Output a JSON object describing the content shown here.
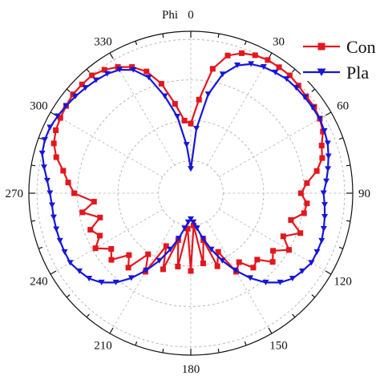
{
  "chart_data": {
    "type": "polar-line",
    "title": "Phi",
    "angle_axis": {
      "zero_direction": "top",
      "direction": "clockwise",
      "ticks": [
        "0",
        "30",
        "60",
        "90",
        "120",
        "150",
        "180",
        "210",
        "240",
        "270",
        "300",
        "330"
      ],
      "tick_values": [
        0,
        30,
        60,
        90,
        120,
        150,
        180,
        210,
        240,
        270,
        300,
        330
      ]
    },
    "radial_axis": {
      "range": [
        0,
        1
      ],
      "grid_circles": [
        0.2,
        0.45,
        0.7,
        0.95
      ],
      "grid": true
    },
    "legend": {
      "placement": "top-right"
    },
    "series": [
      {
        "name": "Con",
        "color": "#e3171d",
        "marker": "square",
        "angles": [
          0,
          5,
          10,
          15,
          20,
          25,
          30,
          35,
          40,
          45,
          50,
          55,
          60,
          65,
          70,
          75,
          80,
          85,
          90,
          95,
          100,
          105,
          110,
          115,
          120,
          125,
          130,
          135,
          140,
          145,
          150,
          155,
          160,
          165,
          170,
          175,
          180,
          185,
          190,
          195,
          200,
          205,
          210,
          215,
          220,
          225,
          230,
          235,
          240,
          245,
          250,
          255,
          260,
          265,
          270,
          275,
          280,
          285,
          290,
          295,
          300,
          305,
          310,
          315,
          320,
          325,
          330,
          335,
          340,
          345,
          350,
          355
        ],
        "values": [
          0.43,
          0.58,
          0.78,
          0.88,
          0.92,
          0.94,
          0.95,
          0.95,
          0.95,
          0.94,
          0.93,
          0.93,
          0.92,
          0.9,
          0.86,
          0.84,
          0.79,
          0.72,
          0.68,
          0.72,
          0.71,
          0.64,
          0.72,
          0.63,
          0.7,
          0.62,
          0.66,
          0.58,
          0.6,
          0.52,
          0.56,
          0.4,
          0.48,
          0.3,
          0.44,
          0.2,
          0.48,
          0.22,
          0.46,
          0.3,
          0.5,
          0.36,
          0.56,
          0.46,
          0.6,
          0.54,
          0.64,
          0.6,
          0.68,
          0.62,
          0.66,
          0.58,
          0.68,
          0.6,
          0.72,
          0.76,
          0.8,
          0.86,
          0.9,
          0.92,
          0.93,
          0.94,
          0.95,
          0.95,
          0.95,
          0.93,
          0.9,
          0.86,
          0.8,
          0.7,
          0.56,
          0.45
        ]
      },
      {
        "name": "Pla",
        "color": "#1616d8",
        "marker": "triangle-down",
        "angles": [
          0,
          5,
          10,
          15,
          20,
          25,
          30,
          35,
          40,
          45,
          50,
          55,
          60,
          65,
          70,
          75,
          80,
          85,
          90,
          95,
          100,
          105,
          110,
          115,
          120,
          125,
          130,
          135,
          140,
          145,
          150,
          155,
          160,
          165,
          170,
          175,
          180,
          185,
          190,
          195,
          200,
          205,
          210,
          215,
          220,
          225,
          230,
          235,
          240,
          245,
          250,
          255,
          260,
          265,
          270,
          275,
          280,
          285,
          290,
          295,
          300,
          305,
          310,
          315,
          320,
          325,
          330,
          335,
          340,
          345,
          350,
          355
        ],
        "values": [
          0.15,
          0.4,
          0.62,
          0.76,
          0.84,
          0.88,
          0.9,
          0.91,
          0.92,
          0.92,
          0.92,
          0.92,
          0.92,
          0.91,
          0.9,
          0.88,
          0.86,
          0.84,
          0.82,
          0.83,
          0.84,
          0.85,
          0.86,
          0.86,
          0.86,
          0.84,
          0.82,
          0.78,
          0.72,
          0.64,
          0.55,
          0.46,
          0.37,
          0.29,
          0.22,
          0.18,
          0.16,
          0.18,
          0.22,
          0.29,
          0.37,
          0.46,
          0.55,
          0.64,
          0.72,
          0.78,
          0.82,
          0.84,
          0.86,
          0.86,
          0.86,
          0.86,
          0.86,
          0.86,
          0.87,
          0.89,
          0.92,
          0.95,
          0.96,
          0.96,
          0.95,
          0.94,
          0.93,
          0.92,
          0.91,
          0.9,
          0.88,
          0.84,
          0.76,
          0.62,
          0.48,
          0.3
        ]
      }
    ]
  }
}
